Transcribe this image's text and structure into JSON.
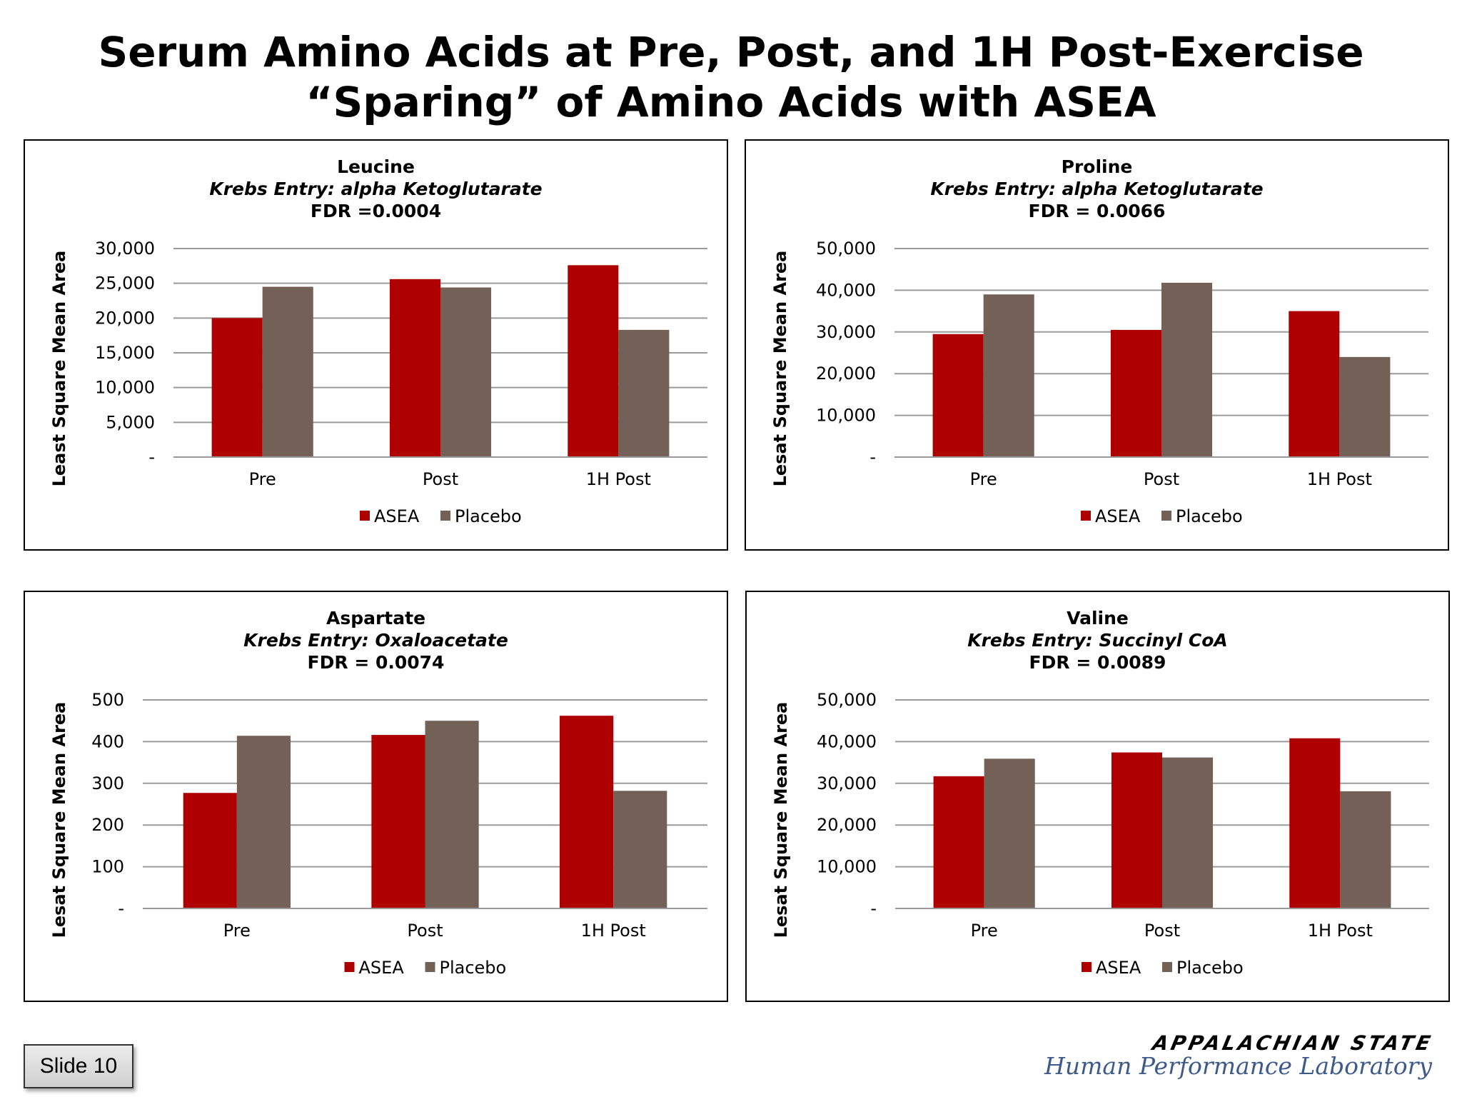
{
  "slide": {
    "title_line1": "Serum Amino Acids at Pre, Post, and 1H Post-Exercise",
    "title_line2": "“Sparing” of Amino Acids with ASEA",
    "slide_number": "Slide 10"
  },
  "logo": {
    "brand": "APPALACHIAN STATE",
    "lab": "Human Performance Laboratory"
  },
  "colors": {
    "asea": "#AE0000",
    "placebo": "#736056",
    "grid": "#9a9a9a"
  },
  "chart_data": [
    {
      "type": "bar",
      "title": "Leucine",
      "subtitle": "Krebs Entry: alpha Ketoglutarate",
      "fdr": "FDR =0.0004",
      "ylabel": "Least Square Mean Area",
      "categories": [
        "Pre",
        "Post",
        "1H Post"
      ],
      "series": [
        {
          "name": "ASEA",
          "values": [
            20000,
            25600,
            27600
          ]
        },
        {
          "name": "Placebo",
          "values": [
            24500,
            24400,
            18300
          ]
        }
      ],
      "ylim": [
        0,
        30000
      ],
      "yticks": [
        0,
        5000,
        10000,
        15000,
        20000,
        25000,
        30000
      ],
      "ytick_labels": [
        "-",
        "5,000",
        "10,000",
        "15,000",
        "20,000",
        "25,000",
        "30,000"
      ],
      "grid": true,
      "legend": "bottom"
    },
    {
      "type": "bar",
      "title": "Proline",
      "subtitle": "Krebs Entry: alpha Ketoglutarate",
      "fdr": "FDR = 0.0066",
      "ylabel": "Lesat Square Mean Area",
      "categories": [
        "Pre",
        "Post",
        "1H Post"
      ],
      "series": [
        {
          "name": "ASEA",
          "values": [
            29500,
            30500,
            35000
          ]
        },
        {
          "name": "Placebo",
          "values": [
            39000,
            41800,
            24000
          ]
        }
      ],
      "ylim": [
        0,
        50000
      ],
      "yticks": [
        0,
        10000,
        20000,
        30000,
        40000,
        50000
      ],
      "ytick_labels": [
        "-",
        "10,000",
        "20,000",
        "30,000",
        "40,000",
        "50,000"
      ],
      "grid": true,
      "legend": "bottom"
    },
    {
      "type": "bar",
      "title": "Aspartate",
      "subtitle": "Krebs Entry: Oxaloacetate",
      "fdr": "FDR = 0.0074",
      "ylabel": "Lesat Square Mean Area",
      "categories": [
        "Pre",
        "Post",
        "1H Post"
      ],
      "series": [
        {
          "name": "ASEA",
          "values": [
            277,
            416,
            462
          ]
        },
        {
          "name": "Placebo",
          "values": [
            414,
            450,
            282
          ]
        }
      ],
      "ylim": [
        0,
        500
      ],
      "yticks": [
        0,
        100,
        200,
        300,
        400,
        500
      ],
      "ytick_labels": [
        "-",
        "100",
        "200",
        "300",
        "400",
        "500"
      ],
      "grid": true,
      "legend": "bottom"
    },
    {
      "type": "bar",
      "title": "Valine",
      "subtitle": "Krebs Entry: Succinyl CoA",
      "fdr": "FDR = 0.0089",
      "ylabel": "Lesat Square Mean Area",
      "categories": [
        "Pre",
        "Post",
        "1H Post"
      ],
      "series": [
        {
          "name": "ASEA",
          "values": [
            31700,
            37400,
            40800
          ]
        },
        {
          "name": "Placebo",
          "values": [
            35900,
            36200,
            28100
          ]
        }
      ],
      "ylim": [
        0,
        50000
      ],
      "yticks": [
        0,
        10000,
        20000,
        30000,
        40000,
        50000
      ],
      "ytick_labels": [
        "-",
        "10,000",
        "20,000",
        "30,000",
        "40,000",
        "50,000"
      ],
      "grid": true,
      "legend": "bottom"
    }
  ]
}
